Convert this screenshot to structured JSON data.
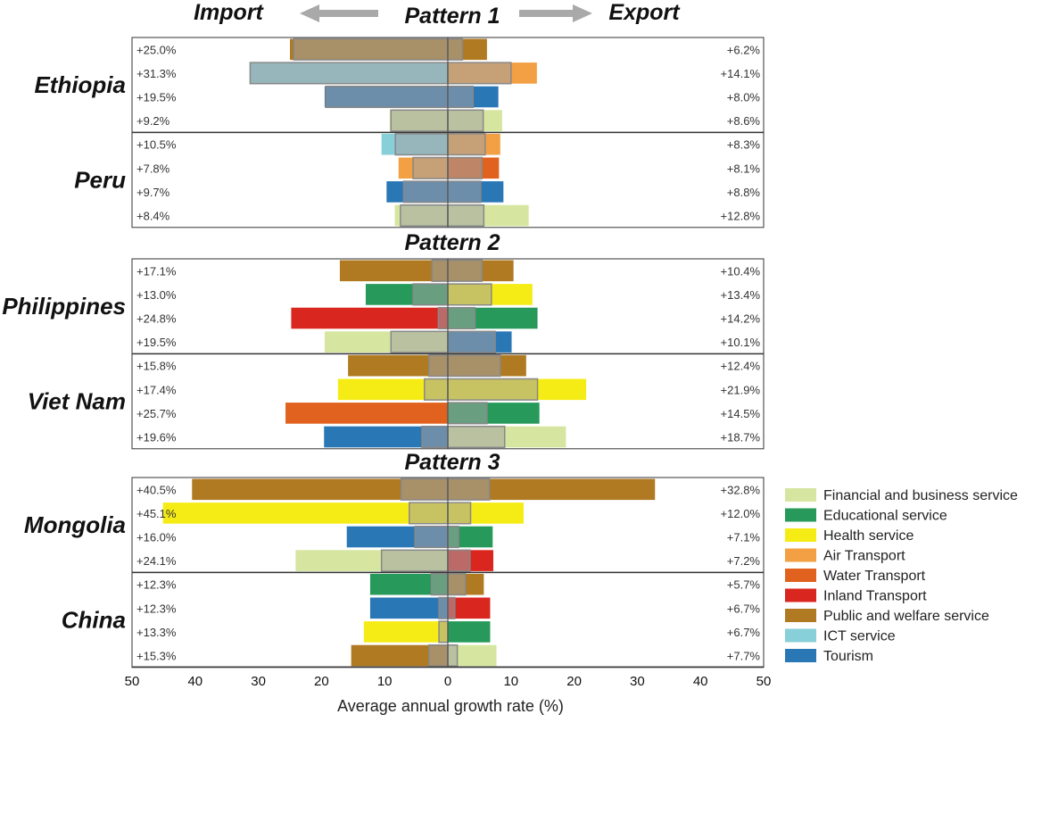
{
  "chart_data": {
    "type": "bar",
    "orientation": "horizontal-diverging",
    "header": {
      "left": "Import",
      "right": "Export"
    },
    "xlabel": "Average annual growth rate (%)",
    "xlim": [
      -50,
      50
    ],
    "xticks": [
      "50",
      "40",
      "30",
      "20",
      "10",
      "0",
      "10",
      "20",
      "30",
      "40",
      "50"
    ],
    "categories_legend": [
      {
        "key": "financial",
        "name": "Financial and business service",
        "color": "#d6e6a0"
      },
      {
        "key": "education",
        "name": "Educational service",
        "color": "#27995a"
      },
      {
        "key": "health",
        "name": "Health service",
        "color": "#f5ec16"
      },
      {
        "key": "air",
        "name": "Air Transport",
        "color": "#f2a043"
      },
      {
        "key": "water",
        "name": "Water Transport",
        "color": "#e0621e"
      },
      {
        "key": "inland",
        "name": "Inland Transport",
        "color": "#d9261f"
      },
      {
        "key": "public",
        "name": "Public and welfare service",
        "color": "#b07a22"
      },
      {
        "key": "ict",
        "name": "ICT service",
        "color": "#87cfd9"
      },
      {
        "key": "tourism",
        "name": "Tourism",
        "color": "#2a77b5"
      }
    ],
    "overlay_color": "#a3a3a3",
    "patterns": [
      {
        "title": "Pattern 1",
        "countries": [
          {
            "name": "Ethiopia",
            "rows": [
              {
                "imp": "public",
                "imp_val": 25.0,
                "imp_overlay": 24.4,
                "imp_label": "+25.0%",
                "exp": "public",
                "exp_val": 6.2,
                "exp_overlay": 2.3,
                "exp_label": "+6.2%"
              },
              {
                "imp": "ict",
                "imp_val": 31.3,
                "imp_overlay": 31.3,
                "imp_label": "+31.3%",
                "exp": "air",
                "exp_val": 14.1,
                "exp_overlay": 10.0,
                "exp_label": "+14.1%"
              },
              {
                "imp": "tourism",
                "imp_val": 19.5,
                "imp_overlay": 19.3,
                "imp_label": "+19.5%",
                "exp": "tourism",
                "exp_val": 8.0,
                "exp_overlay": 4.0,
                "exp_label": "+8.0%"
              },
              {
                "imp": "financial",
                "imp_val": 9.2,
                "imp_overlay": 9.0,
                "imp_label": "+9.2%",
                "exp": "financial",
                "exp_val": 8.6,
                "exp_overlay": 5.6,
                "exp_label": "+8.6%"
              }
            ]
          },
          {
            "name": "Peru",
            "rows": [
              {
                "imp": "ict",
                "imp_val": 10.5,
                "imp_overlay": 8.3,
                "imp_label": "+10.5%",
                "exp": "air",
                "exp_val": 8.3,
                "exp_overlay": 5.9,
                "exp_label": "+8.3%"
              },
              {
                "imp": "air",
                "imp_val": 7.8,
                "imp_overlay": 5.5,
                "imp_label": "+7.8%",
                "exp": "water",
                "exp_val": 8.1,
                "exp_overlay": 5.4,
                "exp_label": "+8.1%"
              },
              {
                "imp": "tourism",
                "imp_val": 9.7,
                "imp_overlay": 7.0,
                "imp_label": "+9.7%",
                "exp": "tourism",
                "exp_val": 8.8,
                "exp_overlay": 5.2,
                "exp_label": "+8.8%"
              },
              {
                "imp": "financial",
                "imp_val": 8.4,
                "imp_overlay": 7.5,
                "imp_label": "+8.4%",
                "exp": "financial",
                "exp_val": 12.8,
                "exp_overlay": 5.7,
                "exp_label": "+12.8%"
              }
            ]
          }
        ]
      },
      {
        "title": "Pattern 2",
        "countries": [
          {
            "name": "Philippines",
            "rows": [
              {
                "imp": "public",
                "imp_val": 17.1,
                "imp_overlay": 2.5,
                "imp_label": "+17.1%",
                "exp": "public",
                "exp_val": 10.4,
                "exp_overlay": 5.4,
                "exp_label": "+10.4%"
              },
              {
                "imp": "education",
                "imp_val": 13.0,
                "imp_overlay": 5.5,
                "imp_label": "+13.0%",
                "exp": "health",
                "exp_val": 13.4,
                "exp_overlay": 6.9,
                "exp_label": "+13.4%"
              },
              {
                "imp": "inland",
                "imp_val": 24.8,
                "imp_overlay": 1.5,
                "imp_label": "+24.8%",
                "exp": "education",
                "exp_val": 14.2,
                "exp_overlay": 4.3,
                "exp_label": "+14.2%"
              },
              {
                "imp": "financial",
                "imp_val": 19.5,
                "imp_overlay": 9.0,
                "imp_label": "+19.5%",
                "exp": "tourism",
                "exp_val": 10.1,
                "exp_overlay": 7.5,
                "exp_label": "+10.1%"
              }
            ]
          },
          {
            "name": "Viet Nam",
            "rows": [
              {
                "imp": "public",
                "imp_val": 15.8,
                "imp_overlay": 3.0,
                "imp_label": "+15.8%",
                "exp": "public",
                "exp_val": 12.4,
                "exp_overlay": 8.3,
                "exp_label": "+12.4%"
              },
              {
                "imp": "health",
                "imp_val": 17.4,
                "imp_overlay": 3.7,
                "imp_label": "+17.4%",
                "exp": "health",
                "exp_val": 21.9,
                "exp_overlay": 14.2,
                "exp_label": "+21.9%"
              },
              {
                "imp": "water",
                "imp_val": 25.7,
                "imp_overlay": 0,
                "imp_label": "+25.7%",
                "exp": "education",
                "exp_val": 14.5,
                "exp_overlay": 6.2,
                "exp_label": "+14.5%"
              },
              {
                "imp": "tourism",
                "imp_val": 19.6,
                "imp_overlay": 4.1,
                "imp_label": "+19.6%",
                "exp": "financial",
                "exp_val": 18.7,
                "exp_overlay": 9.0,
                "exp_label": "+18.7%"
              }
            ]
          }
        ]
      },
      {
        "title": "Pattern 3",
        "countries": [
          {
            "name": "Mongolia",
            "rows": [
              {
                "imp": "public",
                "imp_val": 40.5,
                "imp_overlay": 7.4,
                "imp_label": "+40.5%",
                "exp": "public",
                "exp_val": 32.8,
                "exp_overlay": 6.6,
                "exp_label": "+32.8%"
              },
              {
                "imp": "health",
                "imp_val": 45.1,
                "imp_overlay": 6.1,
                "imp_label": "+45.1%",
                "exp": "health",
                "exp_val": 12.0,
                "exp_overlay": 3.6,
                "exp_label": "+12.0%"
              },
              {
                "imp": "tourism",
                "imp_val": 16.0,
                "imp_overlay": 5.2,
                "imp_label": "+16.0%",
                "exp": "education",
                "exp_val": 7.1,
                "exp_overlay": 1.7,
                "exp_label": "+7.1%"
              },
              {
                "imp": "financial",
                "imp_val": 24.1,
                "imp_overlay": 10.5,
                "imp_label": "+24.1%",
                "exp": "inland",
                "exp_val": 7.2,
                "exp_overlay": 3.5,
                "exp_label": "+7.2%"
              }
            ]
          },
          {
            "name": "China",
            "rows": [
              {
                "imp": "education",
                "imp_val": 12.3,
                "imp_overlay": 2.6,
                "imp_label": "+12.3%",
                "exp": "public",
                "exp_val": 5.7,
                "exp_overlay": 2.8,
                "exp_label": "+5.7%"
              },
              {
                "imp": "tourism",
                "imp_val": 12.3,
                "imp_overlay": 1.4,
                "imp_label": "+12.3%",
                "exp": "inland",
                "exp_val": 6.7,
                "exp_overlay": 1.1,
                "exp_label": "+6.7%"
              },
              {
                "imp": "health",
                "imp_val": 13.3,
                "imp_overlay": 1.4,
                "imp_label": "+13.3%",
                "exp": "education",
                "exp_val": 6.7,
                "exp_overlay": 0,
                "exp_label": "+6.7%"
              },
              {
                "imp": "public",
                "imp_val": 15.3,
                "imp_overlay": 3.0,
                "imp_label": "+15.3%",
                "exp": "financial",
                "exp_val": 7.7,
                "exp_overlay": 1.5,
                "exp_label": "+7.7%"
              }
            ]
          }
        ]
      }
    ]
  }
}
